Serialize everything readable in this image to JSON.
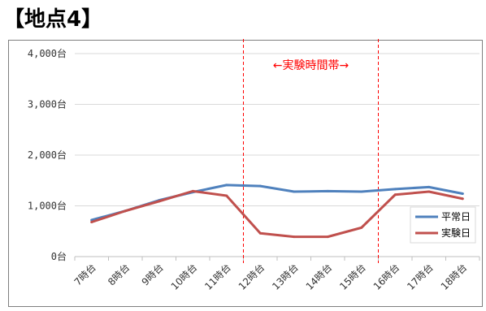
{
  "page": {
    "title": "【地点4】"
  },
  "chart_data": {
    "type": "line",
    "title": "",
    "xlabel": "",
    "ylabel": "",
    "categories": [
      "7時台",
      "8時台",
      "9時台",
      "10時台",
      "11時台",
      "12時台",
      "13時台",
      "14時台",
      "15時台",
      "16時台",
      "17時台",
      "18時台"
    ],
    "y_tick_labels": [
      "0台",
      "1,000台",
      "2,000台",
      "3,000台",
      "4,000台"
    ],
    "y_ticks": [
      0,
      1000,
      2000,
      3000,
      4000
    ],
    "ylim": [
      0,
      4000
    ],
    "grid": "horizontal",
    "legend_position": "right",
    "series": [
      {
        "name": "平常日",
        "color": "#4f81bd",
        "values": [
          720,
          900,
          1110,
          1270,
          1410,
          1390,
          1280,
          1290,
          1280,
          1330,
          1370,
          1240
        ]
      },
      {
        "name": "実験日",
        "color": "#c0504d",
        "values": [
          680,
          900,
          1090,
          1290,
          1200,
          460,
          390,
          390,
          570,
          1220,
          1280,
          1140
        ]
      }
    ],
    "annotation": {
      "text": "←実験時間帯→",
      "color": "#ff0000",
      "span_categories": [
        "11時台",
        "15時台"
      ]
    }
  }
}
